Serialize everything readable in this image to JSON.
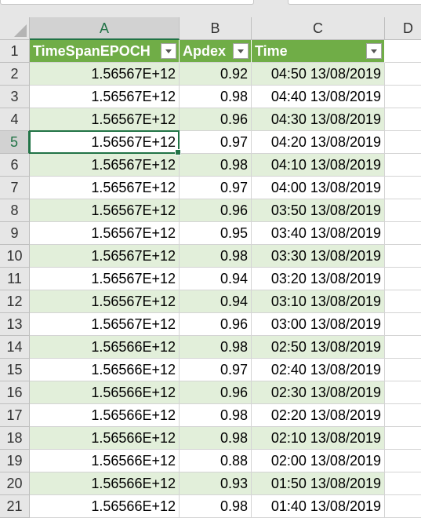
{
  "columns": [
    {
      "letter": "A"
    },
    {
      "letter": "B"
    },
    {
      "letter": "C"
    },
    {
      "letter": "D"
    }
  ],
  "headers": [
    "TimeSpanEPOCH",
    "Apdex",
    "Time"
  ],
  "rows": [
    {
      "num": "1"
    },
    {
      "num": "2",
      "a": "1.56567E+12",
      "b": "0.92",
      "c": "04:50 13/08/2019"
    },
    {
      "num": "3",
      "a": "1.56567E+12",
      "b": "0.98",
      "c": "04:40 13/08/2019"
    },
    {
      "num": "4",
      "a": "1.56567E+12",
      "b": "0.96",
      "c": "04:30 13/08/2019"
    },
    {
      "num": "5",
      "a": "1.56567E+12",
      "b": "0.97",
      "c": "04:20 13/08/2019"
    },
    {
      "num": "6",
      "a": "1.56567E+12",
      "b": "0.98",
      "c": "04:10 13/08/2019"
    },
    {
      "num": "7",
      "a": "1.56567E+12",
      "b": "0.97",
      "c": "04:00 13/08/2019"
    },
    {
      "num": "8",
      "a": "1.56567E+12",
      "b": "0.96",
      "c": "03:50 13/08/2019"
    },
    {
      "num": "9",
      "a": "1.56567E+12",
      "b": "0.95",
      "c": "03:40 13/08/2019"
    },
    {
      "num": "10",
      "a": "1.56567E+12",
      "b": "0.98",
      "c": "03:30 13/08/2019"
    },
    {
      "num": "11",
      "a": "1.56567E+12",
      "b": "0.94",
      "c": "03:20 13/08/2019"
    },
    {
      "num": "12",
      "a": "1.56567E+12",
      "b": "0.94",
      "c": "03:10 13/08/2019"
    },
    {
      "num": "13",
      "a": "1.56567E+12",
      "b": "0.96",
      "c": "03:00 13/08/2019"
    },
    {
      "num": "14",
      "a": "1.56566E+12",
      "b": "0.98",
      "c": "02:50 13/08/2019"
    },
    {
      "num": "15",
      "a": "1.56566E+12",
      "b": "0.97",
      "c": "02:40 13/08/2019"
    },
    {
      "num": "16",
      "a": "1.56566E+12",
      "b": "0.96",
      "c": "02:30 13/08/2019"
    },
    {
      "num": "17",
      "a": "1.56566E+12",
      "b": "0.98",
      "c": "02:20 13/08/2019"
    },
    {
      "num": "18",
      "a": "1.56566E+12",
      "b": "0.98",
      "c": "02:10 13/08/2019"
    },
    {
      "num": "19",
      "a": "1.56566E+12",
      "b": "0.88",
      "c": "02:00 13/08/2019"
    },
    {
      "num": "20",
      "a": "1.56566E+12",
      "b": "0.93",
      "c": "01:50 13/08/2019"
    },
    {
      "num": "21",
      "a": "1.56566E+12",
      "b": "0.98",
      "c": "01:40 13/08/2019"
    }
  ],
  "active_cell": "A5",
  "colors": {
    "header_fill": "#70ad47",
    "band_fill": "#e2efda",
    "selection": "#217346"
  }
}
